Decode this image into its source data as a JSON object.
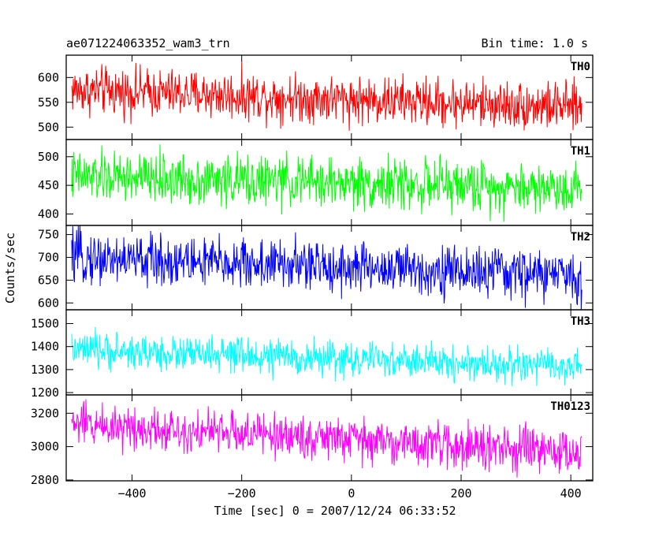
{
  "header": {
    "title": "ae071224063352_wam3_trn",
    "bin_time": "Bin time: 1.0 s"
  },
  "chart_data": {
    "type": "line",
    "title": "ae071224063352_wam3_trn",
    "subtitle": "Bin time: 1.0 s",
    "xlabel": "Time [sec] 0 = 2007/12/24 06:33:52",
    "ylabel": "Counts/sec",
    "xlim": [
      -520,
      440
    ],
    "x_range": [
      -510,
      420
    ],
    "x_ticks": [
      -400,
      -200,
      0,
      200,
      400
    ],
    "x_tick_labels": [
      "−400",
      "−200",
      "0",
      "200",
      "400"
    ],
    "series": [
      {
        "name": "TH0",
        "color": "#ff0000",
        "ylim": [
          475,
          645
        ],
        "y_ticks": [
          500,
          550,
          600
        ],
        "y_tick_labels": [
          "500",
          "550",
          "600"
        ],
        "mean_start": 575,
        "mean_end": 540,
        "noise": 24
      },
      {
        "name": "TH1",
        "color": "#00ff00",
        "ylim": [
          380,
          530
        ],
        "y_ticks": [
          400,
          450,
          500
        ],
        "y_tick_labels": [
          "400",
          "450",
          "500"
        ],
        "mean_start": 465,
        "mean_end": 445,
        "noise": 22
      },
      {
        "name": "TH2",
        "color": "#0000ff",
        "ylim": [
          585,
          770
        ],
        "y_ticks": [
          600,
          650,
          700,
          750
        ],
        "y_tick_labels": [
          "600",
          "650",
          "700",
          "750"
        ],
        "mean_start": 700,
        "mean_end": 660,
        "noise": 28
      },
      {
        "name": "TH3",
        "color": "#00ffff",
        "ylim": [
          1190,
          1560
        ],
        "y_ticks": [
          1200,
          1300,
          1400,
          1500
        ],
        "y_tick_labels": [
          "1200",
          "1300",
          "1400",
          "1500"
        ],
        "mean_start": 1385,
        "mean_end": 1310,
        "noise": 38
      },
      {
        "name": "TH0123",
        "color": "#ff00ff",
        "ylim": [
          2795,
          3310
        ],
        "y_ticks": [
          2800,
          3000,
          3200
        ],
        "y_tick_labels": [
          "2800",
          "3000",
          "3200"
        ],
        "mean_start": 3140,
        "mean_end": 2960,
        "noise": 65
      }
    ]
  }
}
